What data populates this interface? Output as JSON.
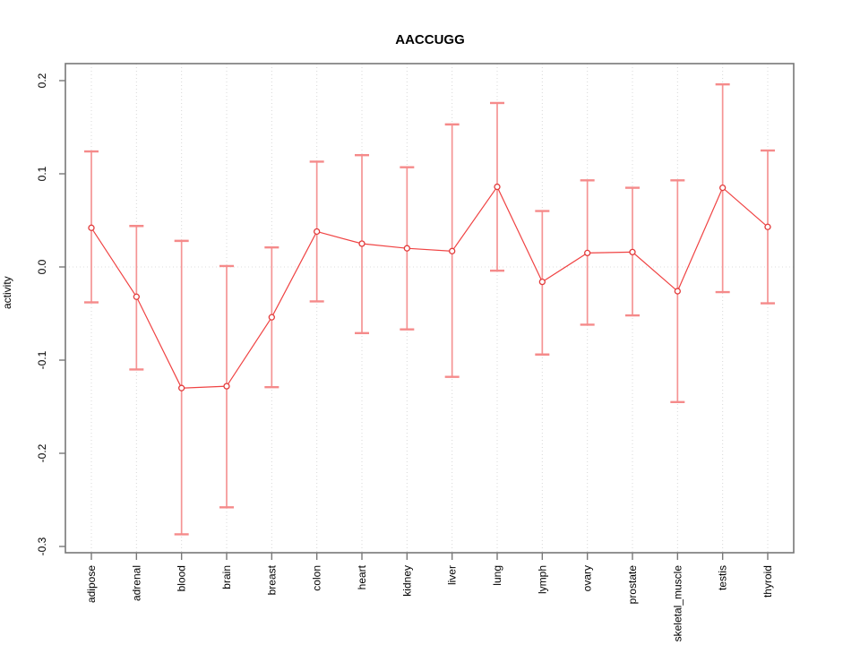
{
  "title": "AACCUGG",
  "y_axis_label": "activity",
  "colors": {
    "series_line": "#f04343",
    "point_stroke": "#e23b3b",
    "error_bar": "#f59494",
    "error_cap": "#f58a8a",
    "gridline": "#d8d8d8",
    "zero_line": "#dcdcdc",
    "frame": "#777777",
    "tick": "#777777",
    "text": "#000000"
  },
  "chart_data": {
    "type": "line",
    "title": "AACCUGG",
    "xlabel": "",
    "ylabel": "activity",
    "ylim": [
      -0.307,
      0.218
    ],
    "yticks": [
      0.2,
      0.1,
      0.0,
      -0.1,
      -0.2,
      -0.3
    ],
    "ytick_labels": [
      "0.2",
      "0.1",
      "0.0",
      "-0.1",
      "-0.2",
      "-0.3"
    ],
    "grid": "vertical dotted gridline per category; dotted horizontal line at y=0; no legend",
    "legend_position": "none",
    "categories": [
      "adipose",
      "adrenal",
      "blood",
      "brain",
      "breast",
      "colon",
      "heart",
      "kidney",
      "liver",
      "lung",
      "lymph",
      "ovary",
      "prostate",
      "skeletal_muscle",
      "testis",
      "thyroid"
    ],
    "series": [
      {
        "name": "activity",
        "marker": "open-circle",
        "values": [
          0.042,
          -0.032,
          -0.13,
          -0.128,
          -0.054,
          0.038,
          0.025,
          0.02,
          0.017,
          0.086,
          -0.016,
          0.015,
          0.016,
          -0.026,
          0.085,
          0.043
        ],
        "error_low": [
          -0.038,
          -0.11,
          -0.287,
          -0.258,
          -0.129,
          -0.037,
          -0.071,
          -0.067,
          -0.118,
          -0.004,
          -0.094,
          -0.062,
          -0.052,
          -0.145,
          -0.027,
          -0.039
        ],
        "error_high": [
          0.124,
          0.044,
          0.028,
          0.001,
          0.021,
          0.113,
          0.12,
          0.107,
          0.153,
          0.176,
          0.06,
          0.093,
          0.085,
          0.093,
          0.196,
          0.125
        ]
      }
    ]
  }
}
